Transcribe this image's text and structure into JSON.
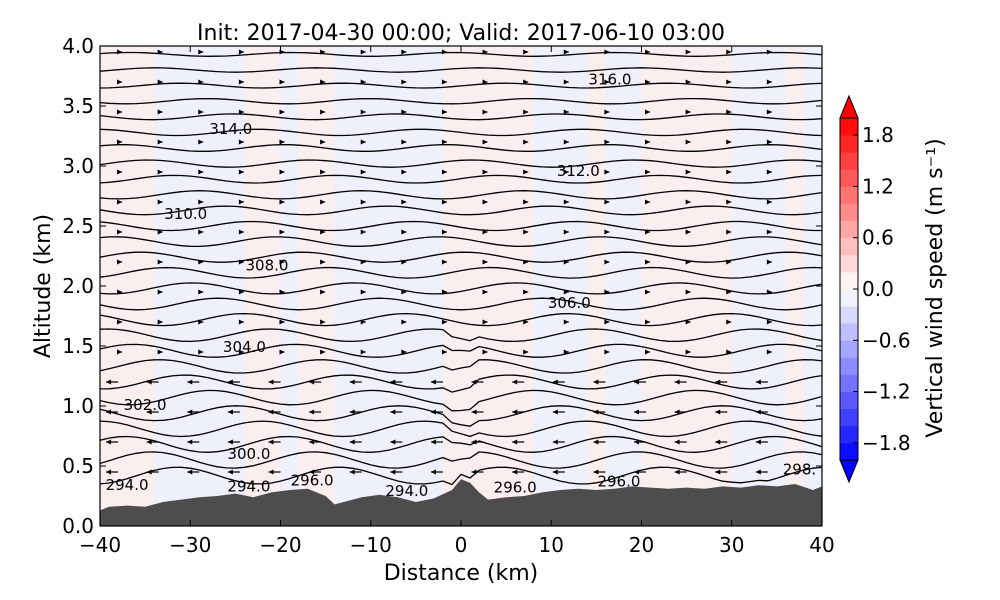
{
  "chart_data": {
    "type": "contour",
    "title": "Init: 2017-04-30 00:00; Valid: 2017-06-10 03:00",
    "xlabel": "Distance (km)",
    "ylabel": "Altitude (km)",
    "xlim": [
      -40,
      40
    ],
    "ylim": [
      0.0,
      4.0
    ],
    "xticks": [
      -40,
      -30,
      -20,
      -10,
      0,
      10,
      20,
      30,
      40
    ],
    "xtick_labels": [
      "−40",
      "−30",
      "−20",
      "−10",
      "0",
      "10",
      "20",
      "30",
      "40"
    ],
    "yticks": [
      0.0,
      0.5,
      1.0,
      1.5,
      2.0,
      2.5,
      3.0,
      3.5,
      4.0
    ],
    "ytick_labels": [
      "0.0",
      "0.5",
      "1.0",
      "1.5",
      "2.0",
      "2.5",
      "3.0",
      "3.5",
      "4.0"
    ],
    "contour_labels": [
      {
        "text": "316.0",
        "x": 16.5,
        "y": 3.72
      },
      {
        "text": "314.0",
        "x": -25.5,
        "y": 3.31
      },
      {
        "text": "312.0",
        "x": 13.0,
        "y": 2.96
      },
      {
        "text": "310.0",
        "x": -30.5,
        "y": 2.6
      },
      {
        "text": "308.0",
        "x": -21.5,
        "y": 2.17
      },
      {
        "text": "306.0",
        "x": 12.0,
        "y": 1.86
      },
      {
        "text": "304.0",
        "x": -24.0,
        "y": 1.49
      },
      {
        "text": "302.0",
        "x": -35.0,
        "y": 1.01
      },
      {
        "text": "300.0",
        "x": -23.5,
        "y": 0.6
      },
      {
        "text": "298.",
        "x": 37.5,
        "y": 0.47
      },
      {
        "text": "296.0",
        "x": -16.5,
        "y": 0.38
      },
      {
        "text": "296.0",
        "x": 6.0,
        "y": 0.32
      },
      {
        "text": "296.0",
        "x": 17.5,
        "y": 0.37
      },
      {
        "text": "294.0",
        "x": -37.0,
        "y": 0.34
      },
      {
        "text": "294.0",
        "x": -23.5,
        "y": 0.33
      },
      {
        "text": "294.0",
        "x": -6.0,
        "y": 0.29
      }
    ],
    "terrain": {
      "x": [
        -40,
        -39,
        -37,
        -35,
        -33,
        -31,
        -29,
        -27,
        -25,
        -23,
        -21,
        -19,
        -17,
        -15,
        -14,
        -13,
        -11,
        -9,
        -7,
        -5,
        -3,
        -1,
        0,
        1,
        2,
        3,
        5,
        7,
        9,
        11,
        13,
        15,
        17,
        19,
        21,
        23,
        25,
        27,
        29,
        31,
        33,
        35,
        37,
        39,
        40
      ],
      "y": [
        0.13,
        0.16,
        0.17,
        0.16,
        0.2,
        0.22,
        0.24,
        0.25,
        0.27,
        0.24,
        0.28,
        0.3,
        0.31,
        0.25,
        0.18,
        0.2,
        0.24,
        0.26,
        0.24,
        0.2,
        0.23,
        0.3,
        0.39,
        0.36,
        0.28,
        0.22,
        0.24,
        0.25,
        0.28,
        0.3,
        0.31,
        0.3,
        0.31,
        0.33,
        0.32,
        0.31,
        0.32,
        0.31,
        0.33,
        0.32,
        0.34,
        0.33,
        0.35,
        0.3,
        0.33
      ]
    },
    "vector_field": "horizontal wind arrows",
    "colorbar": {
      "label": "Vertical wind speed (m s⁻¹)",
      "min": -2.0,
      "max": 2.0,
      "ticks": [
        1.8,
        1.2,
        0.6,
        0.0,
        -0.6,
        -1.2,
        -1.8
      ],
      "tick_labels": [
        "1.8",
        "1.2",
        "0.6",
        "0.0",
        "−0.6",
        "−1.2",
        "−1.8"
      ],
      "colormap": "bwr",
      "extend": "both"
    },
    "colors": {
      "terrain": "#4d4d4d",
      "contour": "#000000",
      "positive_tint": "#fbeeee",
      "negative_tint": "#eef0fb"
    },
    "grid": false
  }
}
